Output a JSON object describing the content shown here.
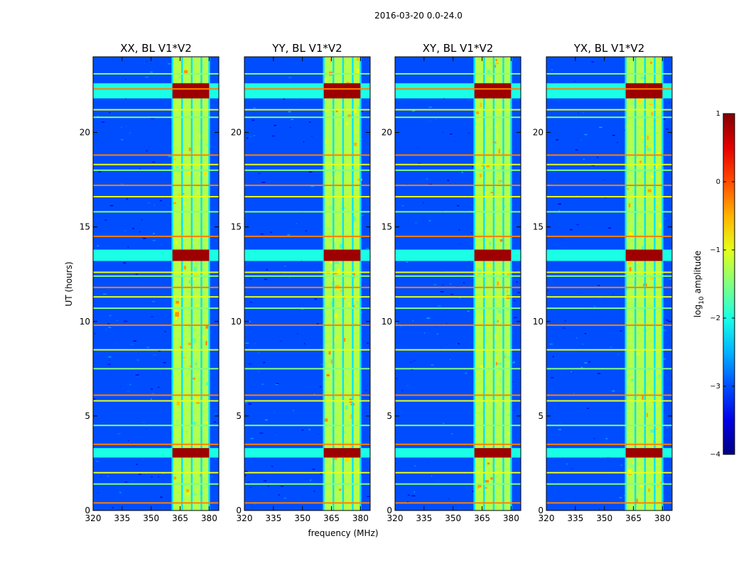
{
  "chart_data": {
    "type": "heatmap",
    "title": "2016-03-20 0.0-24.0",
    "xlabel": "frequency (MHz)",
    "ylabel": "UT (hours)",
    "xlim": [
      320,
      385
    ],
    "ylim": [
      0,
      24
    ],
    "x_ticks": [
      "320",
      "335",
      "350",
      "365",
      "380"
    ],
    "y_ticks": [
      "0",
      "5",
      "10",
      "15",
      "20"
    ],
    "panels": [
      {
        "title": "XX, BL V1*V2"
      },
      {
        "title": "YY, BL V1*V2"
      },
      {
        "title": "XY, BL V1*V2"
      },
      {
        "title": "YX, BL V1*V2"
      }
    ],
    "colorbar": {
      "label_prefix": "log",
      "label_sub": "10",
      "label_suffix": " amplitude",
      "range": [
        -4,
        1
      ],
      "ticks": [
        "1",
        "0",
        "−1",
        "−2",
        "−3",
        "−4"
      ],
      "colormap": "jet"
    },
    "features": {
      "rfi_band_mhz": [
        361,
        380
      ],
      "rfi_subchannel_edges_mhz": [
        361,
        366,
        371,
        376,
        380
      ],
      "strong_time_bands_ut": [
        [
          2.8,
          3.3
        ],
        [
          13.2,
          13.8
        ],
        [
          21.8,
          22.6
        ]
      ],
      "broadband_lines_ut": [
        0.4,
        1.4,
        2.0,
        3.5,
        4.5,
        5.8,
        6.1,
        7.5,
        8.5,
        9.8,
        10.7,
        11.3,
        11.8,
        12.4,
        12.6,
        14.5,
        15.8,
        16.6,
        17.2,
        18.0,
        18.3,
        18.8,
        20.8,
        21.2,
        22.3,
        23.1
      ]
    }
  },
  "colors": {
    "background": "#ffffff",
    "axis": "#000000",
    "jet_low": "#00007f",
    "jet_high": "#7f0000"
  }
}
